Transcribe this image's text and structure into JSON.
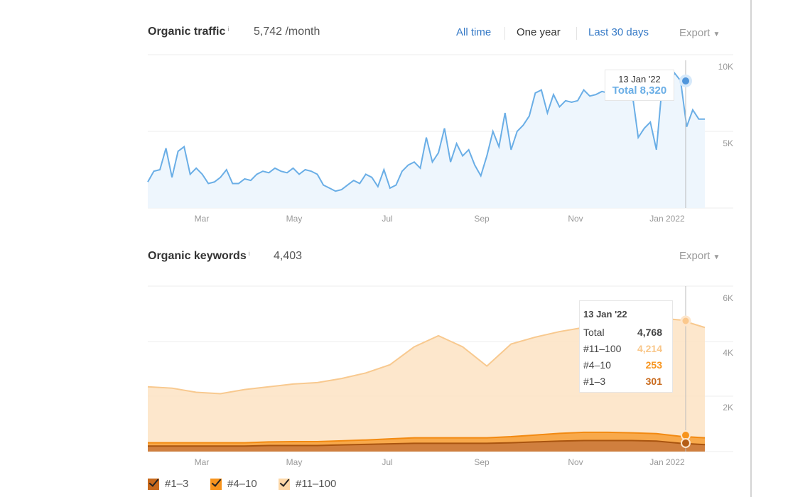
{
  "traffic": {
    "title": "Organic traffic",
    "info_icon": "i",
    "metric": "5,742 /month",
    "ranges": [
      "All time",
      "One year",
      "Last 30 days"
    ],
    "selected_range": "One year",
    "export_label": "Export",
    "tooltip": {
      "date": "13 Jan '22",
      "total": "Total 8,320"
    }
  },
  "keywords": {
    "title": "Organic keywords",
    "info_icon": "i",
    "metric": "4,403",
    "export_label": "Export",
    "tooltip": {
      "date": "13 Jan '22",
      "rows": [
        {
          "label": "Total",
          "value": "4,768"
        },
        {
          "label": "#11–100",
          "value": "4,214"
        },
        {
          "label": "#4–10",
          "value": "253"
        },
        {
          "label": "#1–3",
          "value": "301"
        }
      ]
    },
    "legend": [
      "#1–3",
      "#4–10",
      "#11–100"
    ]
  },
  "colors": {
    "traffic_line": "#6aaee6",
    "traffic_fill": "#eef6fd",
    "k1_3": "#c8691c",
    "k4_10": "#f79a2c",
    "k11_100": "#fde4c6",
    "k11_100_line": "#f8c98f"
  },
  "chart_data": [
    {
      "type": "line",
      "title": "Organic traffic",
      "x_start": "2021-01-25",
      "x_end": "2022-01-25",
      "x_ticks": [
        "Mar",
        "May",
        "Jul",
        "Sep",
        "Nov",
        "Jan 2022"
      ],
      "y_ticks": [
        "10K",
        "5K"
      ],
      "ylim": [
        0,
        10000
      ],
      "series": [
        {
          "name": "Total",
          "unit": "K",
          "values": [
            1.7,
            2.4,
            2.5,
            3.9,
            2.0,
            3.7,
            4.0,
            2.2,
            2.6,
            2.2,
            1.6,
            1.7,
            2.0,
            2.5,
            1.6,
            1.6,
            1.9,
            1.8,
            2.2,
            2.4,
            2.3,
            2.6,
            2.4,
            2.3,
            2.6,
            2.2,
            2.5,
            2.4,
            2.2,
            1.5,
            1.3,
            1.1,
            1.2,
            1.5,
            1.8,
            1.6,
            2.2,
            2.0,
            1.4,
            2.5,
            1.3,
            1.5,
            2.4,
            2.8,
            3.0,
            2.6,
            4.6,
            3.0,
            3.6,
            5.2,
            3.0,
            4.2,
            3.4,
            3.8,
            2.8,
            2.1,
            3.4,
            5.0,
            4.0,
            6.2,
            3.8,
            5.0,
            5.4,
            6.0,
            7.5,
            7.7,
            6.2,
            7.4,
            6.6,
            7.0,
            6.9,
            7.0,
            7.7,
            7.3,
            7.4,
            7.6,
            7.5,
            7.6,
            7.2,
            8.1,
            7.5,
            4.6,
            5.2,
            5.6,
            3.8,
            8.2,
            7.9,
            8.8,
            8.3,
            5.3,
            6.4,
            5.8,
            5.8
          ]
        }
      ],
      "highlight": {
        "date": "13 Jan '22",
        "value": 8320
      }
    },
    {
      "type": "area",
      "stacked": true,
      "title": "Organic keywords",
      "x_ticks": [
        "Mar",
        "May",
        "Jul",
        "Sep",
        "Nov",
        "Jan 2022"
      ],
      "y_ticks": [
        "6K",
        "4K",
        "2K"
      ],
      "ylim": [
        0,
        6000
      ],
      "series": [
        {
          "name": "#1–3",
          "unit": "K",
          "values": [
            0.2,
            0.2,
            0.2,
            0.2,
            0.2,
            0.22,
            0.22,
            0.22,
            0.24,
            0.26,
            0.28,
            0.3,
            0.3,
            0.3,
            0.3,
            0.32,
            0.35,
            0.38,
            0.4,
            0.4,
            0.4,
            0.38,
            0.3,
            0.25
          ]
        },
        {
          "name": "#4–10",
          "unit": "K",
          "values": [
            0.12,
            0.12,
            0.12,
            0.12,
            0.12,
            0.13,
            0.14,
            0.14,
            0.15,
            0.16,
            0.18,
            0.2,
            0.2,
            0.2,
            0.2,
            0.22,
            0.25,
            0.28,
            0.3,
            0.3,
            0.28,
            0.27,
            0.25,
            0.25
          ]
        },
        {
          "name": "#11–100",
          "unit": "K",
          "values": [
            2.03,
            1.98,
            1.83,
            1.78,
            1.93,
            2.0,
            2.09,
            2.14,
            2.26,
            2.43,
            2.69,
            3.3,
            3.7,
            3.3,
            2.6,
            3.36,
            3.55,
            3.69,
            3.8,
            3.95,
            4.17,
            4.2,
            4.22,
            4.0
          ]
        }
      ],
      "highlight": {
        "date": "13 Jan '22",
        "total": 4768
      }
    }
  ]
}
